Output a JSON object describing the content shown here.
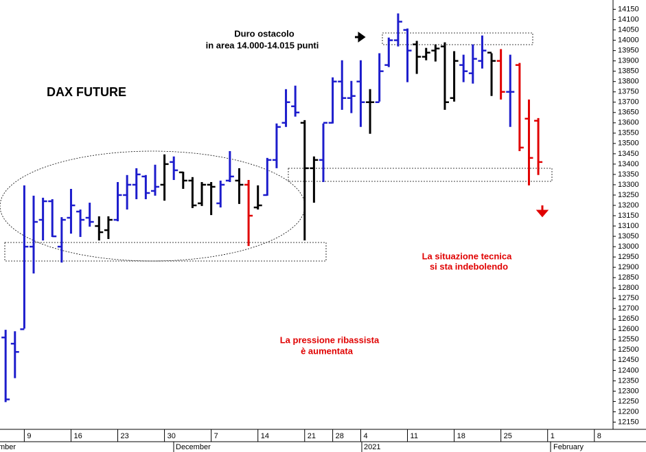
{
  "chart_data": {
    "type": "ohlc",
    "title": "DAX FUTURE",
    "annotations": [
      [
        "Duro ostacolo",
        "in area 14.000-14.015 punti"
      ],
      [
        "La situazione tecnica",
        "si sta indebolendo"
      ],
      [
        "La pressione ribassista",
        "è aumentata"
      ]
    ],
    "open": [
      12560,
      12530,
      12600,
      13000,
      13130,
      13220,
      13000,
      13140,
      13170,
      13140,
      13100,
      13080,
      13130,
      13250,
      13300,
      13340,
      13270,
      13300,
      13410,
      13360,
      13320,
      13210,
      13300,
      13210,
      13320,
      13320,
      13300,
      13190,
      13250,
      13420,
      13600,
      13680,
      13600,
      13380,
      13420,
      13600,
      13800,
      13720,
      13800,
      13700,
      13700,
      13880,
      14000,
      14050,
      13980,
      13920,
      13950,
      13970,
      13720,
      13880,
      13840,
      13900,
      13940,
      13900,
      13750,
      13880,
      13620,
      13610
    ],
    "high": [
      12597,
      12590,
      13297,
      13247,
      13237,
      13230,
      13143,
      13280,
      13180,
      13213,
      13147,
      13147,
      13313,
      13347,
      13380,
      13347,
      13397,
      13447,
      13437,
      13363,
      13337,
      13313,
      13313,
      13320,
      13463,
      13380,
      13323,
      13297,
      13430,
      13597,
      13763,
      13780,
      13613,
      13437,
      13597,
      13820,
      13903,
      13803,
      13903,
      13763,
      13937,
      14013,
      14130,
      14057,
      13997,
      13963,
      13980,
      13990,
      13947,
      13930,
      13980,
      14023,
      13937,
      13957,
      13930,
      13890,
      13713,
      13623
    ],
    "low": [
      12247,
      12363,
      12603,
      12870,
      13030,
      13047,
      12923,
      13063,
      13047,
      13097,
      13030,
      13037,
      13123,
      13180,
      13230,
      13230,
      13247,
      13223,
      13323,
      13280,
      13187,
      13197,
      13153,
      13190,
      13313,
      13207,
      13003,
      13180,
      13247,
      13380,
      13580,
      13630,
      13030,
      13213,
      13313,
      13597,
      13663,
      13647,
      13580,
      13547,
      13703,
      13870,
      13970,
      13797,
      13837,
      13903,
      13897,
      13663,
      13703,
      13797,
      13790,
      13863,
      13730,
      13713,
      13580,
      13463,
      13297,
      13347
    ],
    "close": [
      12260,
      12490,
      13000,
      13120,
      13220,
      13050,
      13130,
      13200,
      13130,
      13120,
      13070,
      13130,
      13250,
      13300,
      13350,
      13260,
      13290,
      13400,
      13370,
      13320,
      13200,
      13300,
      13290,
      13300,
      13340,
      13300,
      13150,
      13200,
      13420,
      13580,
      13700,
      13650,
      13380,
      13420,
      13600,
      13800,
      13720,
      13730,
      13700,
      13700,
      13850,
      14000,
      14090,
      13950,
      13920,
      13940,
      13960,
      13700,
      13900,
      13850,
      13910,
      13950,
      13900,
      13750,
      13750,
      13480,
      13430,
      13410
    ],
    "colors": [
      "#1c1ccc",
      "#1c1ccc",
      "#1c1ccc",
      "#1c1ccc",
      "#1c1ccc",
      "#1c1ccc",
      "#1c1ccc",
      "#1c1ccc",
      "#1c1ccc",
      "#1c1ccc",
      "#000000",
      "#000000",
      "#1c1ccc",
      "#1c1ccc",
      "#1c1ccc",
      "#1c1ccc",
      "#1c1ccc",
      "#000000",
      "#1c1ccc",
      "#000000",
      "#000000",
      "#000000",
      "#000000",
      "#1c1ccc",
      "#1c1ccc",
      "#000000",
      "#e00000",
      "#000000",
      "#1c1ccc",
      "#1c1ccc",
      "#1c1ccc",
      "#1c1ccc",
      "#000000",
      "#000000",
      "#1c1ccc",
      "#1c1ccc",
      "#1c1ccc",
      "#1c1ccc",
      "#1c1ccc",
      "#000000",
      "#1c1ccc",
      "#1c1ccc",
      "#1c1ccc",
      "#1c1ccc",
      "#000000",
      "#000000",
      "#000000",
      "#000000",
      "#000000",
      "#1c1ccc",
      "#1c1ccc",
      "#1c1ccc",
      "#000000",
      "#e00000",
      "#1c1ccc",
      "#e00000",
      "#e00000",
      "#e00000"
    ],
    "xlim": [
      -0.6,
      65
    ],
    "xticks": [
      {
        "value": 2,
        "label": "9"
      },
      {
        "value": 7,
        "label": "16"
      },
      {
        "value": 12,
        "label": "23"
      },
      {
        "value": 17,
        "label": "30"
      },
      {
        "value": 22,
        "label": "7"
      },
      {
        "value": 27,
        "label": "14"
      },
      {
        "value": 32,
        "label": "21"
      },
      {
        "value": 35,
        "label": "28"
      },
      {
        "value": 38,
        "label": "4"
      },
      {
        "value": 43,
        "label": "11"
      },
      {
        "value": 48,
        "label": "18"
      },
      {
        "value": 53,
        "label": "25"
      },
      {
        "value": 58,
        "label": "1"
      },
      {
        "value": 63,
        "label": "8"
      }
    ],
    "month_labels": [
      "mber",
      "December",
      "2021",
      "February"
    ],
    "ylim": [
      12115,
      14195
    ],
    "yticks": [
      12150,
      12200,
      12250,
      12300,
      12350,
      12400,
      12450,
      12500,
      12550,
      12600,
      12650,
      12700,
      12750,
      12800,
      12850,
      12900,
      12950,
      13000,
      13050,
      13100,
      13150,
      13200,
      13250,
      13300,
      13350,
      13400,
      13450,
      13500,
      13550,
      13600,
      13650,
      13700,
      13750,
      13800,
      13850,
      13900,
      13950,
      14000,
      14050,
      14100,
      14150
    ],
    "grid": false
  }
}
